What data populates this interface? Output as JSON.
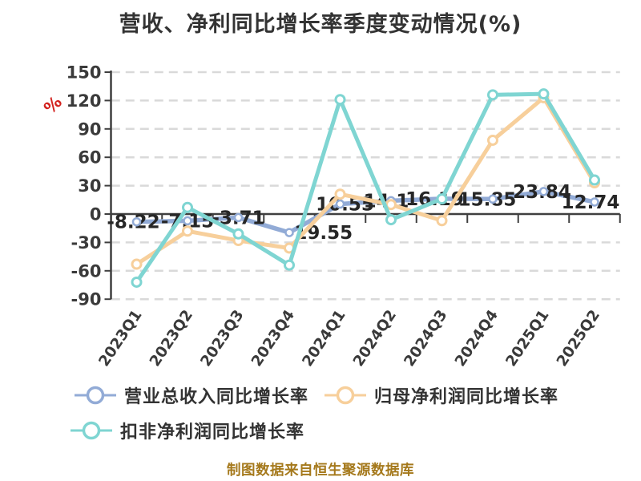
{
  "chart_data": {
    "type": "line",
    "title": "营收、净利同比增长率季度变动情况(%)",
    "unit_label": "%",
    "footer": "制图数据来自恒生聚源数据库",
    "categories": [
      "2023Q1",
      "2023Q2",
      "2023Q3",
      "2023Q4",
      "2024Q1",
      "2024Q2",
      "2024Q3",
      "2024Q4",
      "2025Q1",
      "2025Q2"
    ],
    "y_ticks": [
      150,
      120,
      90,
      60,
      30,
      0,
      -30,
      -60,
      -90
    ],
    "ylim": [
      -90,
      150
    ],
    "grid": "horizontal-dashed",
    "legend_position": "bottom-left",
    "series": [
      {
        "name": "营业总收入同比增长率",
        "color": "#92abd6",
        "values": [
          -8.22,
          -7.15,
          -3.71,
          -19.55,
          10.55,
          14.1,
          16.19,
          15.85,
          23.84,
          12.74
        ],
        "data_labels": [
          "-8.22",
          "-7.15",
          "-3.71",
          "-19.55",
          "10.55",
          "14.1",
          "16.19",
          "15.85",
          "23.84",
          "12.74"
        ]
      },
      {
        "name": "归母净利润同比增长率",
        "color": "#f7cf9b",
        "values": [
          -53,
          -18,
          -28,
          -36,
          21,
          10,
          -7,
          78,
          123,
          33
        ]
      },
      {
        "name": "扣非净利润同比增长率",
        "color": "#7fd5d2",
        "values": [
          -72,
          7,
          -21,
          -54,
          121,
          -6,
          16,
          126,
          127,
          36
        ]
      }
    ],
    "colors": {
      "background": "#ffffff",
      "title": "#333333",
      "axis": "#3f3f3f",
      "grid": "#d9d9d9",
      "tick_text": "#3a3a3a",
      "data_label": "#262626",
      "unit": "#d3231f",
      "legend_text": "#333333",
      "footer": "#a5791c"
    }
  }
}
